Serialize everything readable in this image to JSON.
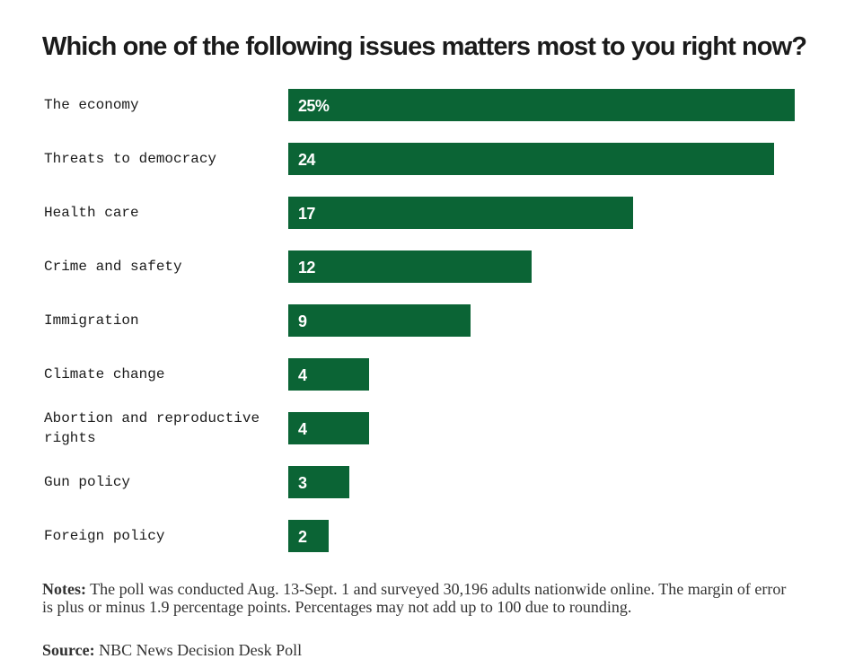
{
  "chart_data": {
    "type": "bar",
    "orientation": "horizontal",
    "title": "Which one of the following issues matters most to you right now?",
    "categories": [
      "The economy",
      "Threats to democracy",
      "Health care",
      "Crime and safety",
      "Immigration",
      "Climate change",
      "Abortion and reproductive rights",
      "Gun policy",
      "Foreign policy"
    ],
    "values": [
      25,
      24,
      17,
      12,
      9,
      4,
      4,
      3,
      2
    ],
    "value_labels": [
      "25%",
      "24",
      "17",
      "12",
      "9",
      "4",
      "4",
      "3",
      "2"
    ],
    "xlim": [
      0,
      25
    ],
    "grid": false,
    "bar_color": "#0b6435"
  },
  "notes": {
    "label": "Notes:",
    "text": "The poll was conducted Aug. 13-Sept. 1 and surveyed 30,196 adults nationwide online. The margin of error is plus or minus 1.9 percentage points. Percentages may not add up to 100 due to rounding."
  },
  "source": {
    "label": "Source:",
    "text": "NBC News Decision Desk Poll"
  }
}
